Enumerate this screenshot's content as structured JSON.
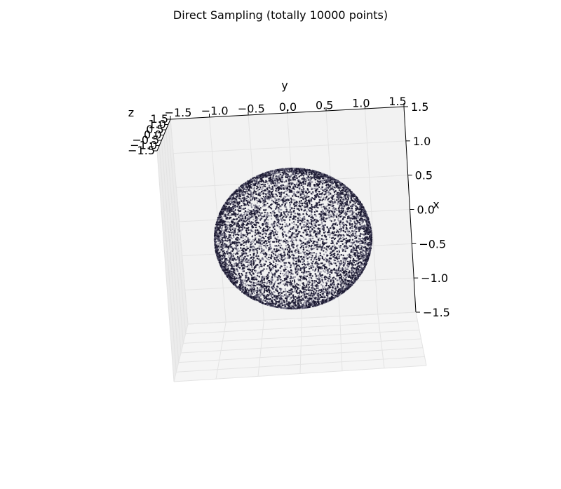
{
  "chart_data": {
    "type": "scatter",
    "projection": "3d",
    "title": "Direct Sampling (totally 10000 points)",
    "xlabel": "x",
    "ylabel": "y",
    "zlabel": "z",
    "xlim": [
      -1.5,
      1.5
    ],
    "ylim": [
      -1.5,
      1.5
    ],
    "zlim": [
      -1.5,
      1.5
    ],
    "x_ticks": [
      "1.5",
      "1.0",
      "0.5",
      "0.0",
      "−0.5",
      "−1.0",
      "−1.5"
    ],
    "y_ticks": [
      "−1.5",
      "−1.0",
      "−0.5",
      "0.0",
      "0.5",
      "1.0",
      "1.5"
    ],
    "z_ticks": [
      "1.5",
      "1.0",
      "0.5",
      "0.0",
      "−0.5",
      "−1.0",
      "−1.5"
    ],
    "point_count": 10000,
    "shape": "unit sphere surface",
    "radius": 1.0,
    "point_color": "#1a1830",
    "grid": true,
    "pane_color": "#f2f2f2",
    "grid_color": "#e3e3e3"
  }
}
